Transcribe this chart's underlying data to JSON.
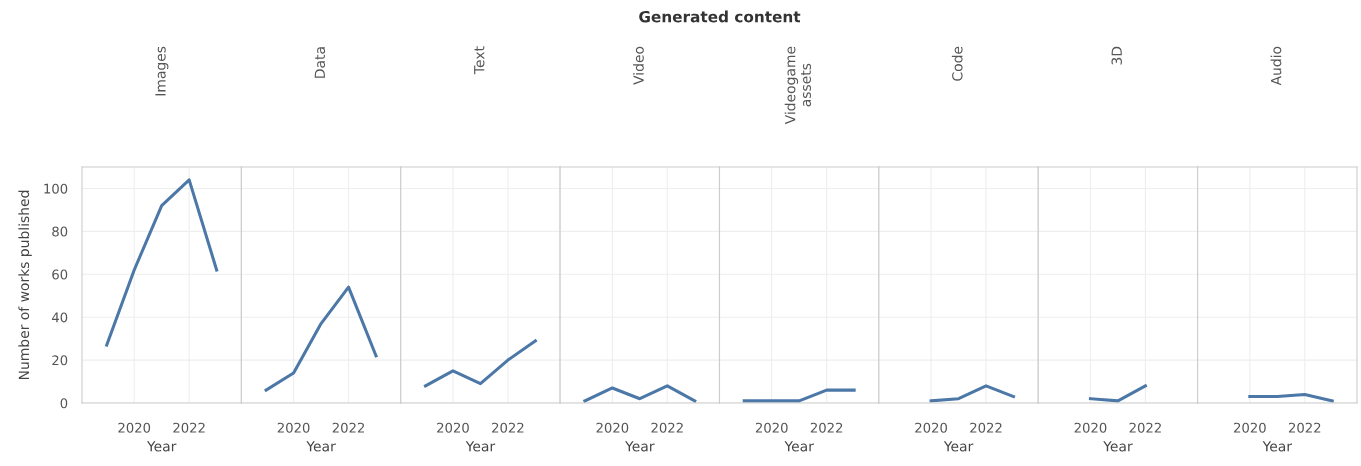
{
  "chart_data": [
    {
      "type": "line",
      "title": "Images",
      "annotations": [
        "Generated content"
      ],
      "xlabel": "Year",
      "ylabel": "Number of works published",
      "x": [
        2019,
        2020,
        2021,
        2022,
        2023
      ],
      "series": [
        {
          "color": "#4c78a8",
          "values": [
            27,
            62,
            92,
            104,
            62
          ]
        }
      ],
      "xlim": [
        2018.1,
        2023.9
      ],
      "xticks": [
        2020,
        2022
      ],
      "ylim": [
        0,
        110
      ],
      "yticks": [
        0,
        20,
        40,
        60,
        80,
        100
      ],
      "grid": true,
      "legend": false
    },
    {
      "type": "line",
      "title": "Data",
      "xlabel": "Year",
      "x": [
        2019,
        2020,
        2021,
        2022,
        2023
      ],
      "series": [
        {
          "color": "#4c78a8",
          "values": [
            6,
            14,
            37,
            54,
            22
          ]
        }
      ],
      "xlim": [
        2018.1,
        2023.9
      ],
      "xticks": [
        2020,
        2022
      ],
      "ylim": [
        0,
        110
      ],
      "yticks": [
        0,
        20,
        40,
        60,
        80,
        100
      ],
      "grid": true,
      "legend": false,
      "tick_labels": "x"
    },
    {
      "type": "line",
      "title": "Text",
      "xlabel": "Year",
      "x": [
        2019,
        2020,
        2021,
        2022,
        2023
      ],
      "series": [
        {
          "color": "#4c78a8",
          "values": [
            8,
            15,
            9,
            20,
            29
          ]
        }
      ],
      "xlim": [
        2018.1,
        2023.9
      ],
      "xticks": [
        2020,
        2022
      ],
      "ylim": [
        0,
        110
      ],
      "yticks": [
        0,
        20,
        40,
        60,
        80,
        100
      ],
      "grid": true,
      "legend": false,
      "tick_labels": "x"
    },
    {
      "type": "line",
      "title": "Video",
      "xlabel": "Year",
      "x": [
        2019,
        2020,
        2021,
        2022,
        2023
      ],
      "series": [
        {
          "color": "#4c78a8",
          "values": [
            1,
            7,
            2,
            8,
            1
          ]
        }
      ],
      "xlim": [
        2018.1,
        2023.9
      ],
      "xticks": [
        2020,
        2022
      ],
      "ylim": [
        0,
        110
      ],
      "yticks": [
        0,
        20,
        40,
        60,
        80,
        100
      ],
      "grid": true,
      "legend": false,
      "tick_labels": "x"
    },
    {
      "type": "line",
      "title": "Videogame\nassets",
      "xlabel": "Year",
      "x": [
        2019,
        2020,
        2021,
        2022,
        2023
      ],
      "series": [
        {
          "color": "#4c78a8",
          "values": [
            1,
            1,
            1,
            6,
            6
          ]
        }
      ],
      "xlim": [
        2018.1,
        2023.9
      ],
      "xticks": [
        2020,
        2022
      ],
      "ylim": [
        0,
        110
      ],
      "yticks": [
        0,
        20,
        40,
        60,
        80,
        100
      ],
      "grid": true,
      "legend": false,
      "tick_labels": "x"
    },
    {
      "type": "line",
      "title": "Code",
      "xlabel": "Year",
      "x": [
        2020,
        2021,
        2022,
        2023
      ],
      "series": [
        {
          "color": "#4c78a8",
          "values": [
            1,
            2,
            8,
            3
          ]
        }
      ],
      "xlim": [
        2018.1,
        2023.9
      ],
      "xticks": [
        2020,
        2022
      ],
      "ylim": [
        0,
        110
      ],
      "yticks": [
        0,
        20,
        40,
        60,
        80,
        100
      ],
      "grid": true,
      "legend": false,
      "tick_labels": "x"
    },
    {
      "type": "line",
      "title": "3D",
      "xlabel": "Year",
      "x": [
        2020,
        2021,
        2022
      ],
      "series": [
        {
          "color": "#4c78a8",
          "values": [
            2,
            1,
            8
          ]
        }
      ],
      "xlim": [
        2018.1,
        2023.9
      ],
      "xticks": [
        2020,
        2022
      ],
      "ylim": [
        0,
        110
      ],
      "yticks": [
        0,
        20,
        40,
        60,
        80,
        100
      ],
      "grid": true,
      "legend": false,
      "tick_labels": "x"
    },
    {
      "type": "line",
      "title": "Audio",
      "xlabel": "Year",
      "x": [
        2020,
        2021,
        2022,
        2023
      ],
      "series": [
        {
          "color": "#4c78a8",
          "values": [
            3,
            3,
            4,
            1
          ]
        }
      ],
      "xlim": [
        2018.1,
        2023.9
      ],
      "xticks": [
        2020,
        2022
      ],
      "ylim": [
        0,
        110
      ],
      "yticks": [
        0,
        20,
        40,
        60,
        80,
        100
      ],
      "grid": true,
      "legend": false,
      "tick_labels": "x"
    }
  ]
}
